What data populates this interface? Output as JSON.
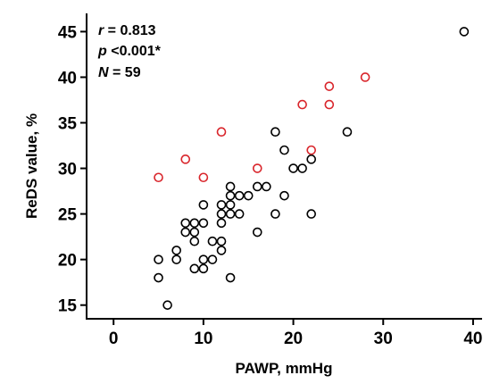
{
  "chart_data": {
    "type": "scatter",
    "xlabel": "PAWP, mmHg",
    "ylabel": "ReDS value, %",
    "xlim": [
      -3,
      41
    ],
    "ylim": [
      13.5,
      47
    ],
    "xticks": [
      0,
      10,
      20,
      30,
      40
    ],
    "yticks": [
      15,
      20,
      25,
      30,
      35,
      40,
      45
    ],
    "grid": false,
    "stats": {
      "r": {
        "sym": "r",
        "text": " = 0.813"
      },
      "p": {
        "sym": "p",
        "text": " <0.001*"
      },
      "n": {
        "sym": "N",
        "text": " = 59"
      }
    },
    "colors": {
      "black": "#000000",
      "red": "#d9262c"
    },
    "series": [
      {
        "color": "black",
        "points": [
          [
            5,
            20
          ],
          [
            5,
            18
          ],
          [
            6,
            15
          ],
          [
            7,
            21
          ],
          [
            7,
            20
          ],
          [
            8,
            24
          ],
          [
            8,
            23
          ],
          [
            9,
            24
          ],
          [
            9,
            23
          ],
          [
            9,
            22
          ],
          [
            9,
            19
          ],
          [
            10,
            26
          ],
          [
            10,
            24
          ],
          [
            10,
            20
          ],
          [
            10,
            19
          ],
          [
            11,
            22
          ],
          [
            11,
            20
          ],
          [
            12,
            26
          ],
          [
            12,
            25
          ],
          [
            12,
            24
          ],
          [
            12,
            22
          ],
          [
            12,
            21
          ],
          [
            13,
            28
          ],
          [
            13,
            27
          ],
          [
            13,
            26
          ],
          [
            13,
            25
          ],
          [
            13,
            18
          ],
          [
            14,
            27
          ],
          [
            14,
            25
          ],
          [
            15,
            27
          ],
          [
            16,
            28
          ],
          [
            16,
            23
          ],
          [
            17,
            28
          ],
          [
            18,
            34
          ],
          [
            18,
            25
          ],
          [
            19,
            32
          ],
          [
            19,
            27
          ],
          [
            20,
            30
          ],
          [
            21,
            30
          ],
          [
            22,
            31
          ],
          [
            22,
            25
          ],
          [
            26,
            34
          ],
          [
            39,
            45
          ]
        ]
      },
      {
        "color": "red",
        "points": [
          [
            5,
            29
          ],
          [
            8,
            31
          ],
          [
            10,
            29
          ],
          [
            12,
            34
          ],
          [
            16,
            30
          ],
          [
            21,
            37
          ],
          [
            22,
            32
          ],
          [
            24,
            39
          ],
          [
            24,
            37
          ],
          [
            28,
            40
          ]
        ]
      }
    ]
  }
}
